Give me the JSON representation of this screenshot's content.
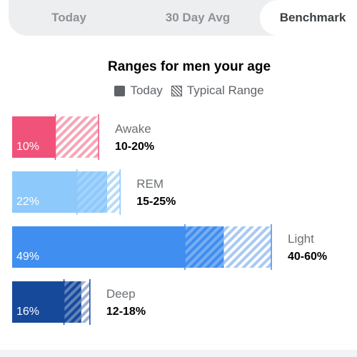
{
  "tabs": [
    {
      "label": "Today",
      "active": false
    },
    {
      "label": "30 Day Avg",
      "active": false
    },
    {
      "label": "Benchmark",
      "active": true
    }
  ],
  "benchmark": {
    "title": "Ranges for men your age",
    "legend": {
      "today": "Today",
      "typical": "Typical Range"
    }
  },
  "stages": [
    {
      "name": "Awake",
      "today_label": "10%",
      "today": 10,
      "range_label": "10-20%",
      "range": [
        10,
        20
      ],
      "color": "#f0527a",
      "hatch": "#f7a5b8"
    },
    {
      "name": "REM",
      "today_label": "22%",
      "today": 22,
      "range_label": "15-25%",
      "range": [
        15,
        25
      ],
      "color": "#8ec9fb",
      "hatch": "#b6dcfb"
    },
    {
      "name": "Light",
      "today_label": "49%",
      "today": 49,
      "range_label": "40-60%",
      "range": [
        40,
        60
      ],
      "color": "#3f8ef0",
      "hatch": "#a7c9f4"
    },
    {
      "name": "Deep",
      "today_label": "16%",
      "today": 16,
      "range_label": "12-18%",
      "range": [
        12,
        18
      ],
      "color": "#17499b",
      "hatch": "#9db1d3"
    }
  ]
}
